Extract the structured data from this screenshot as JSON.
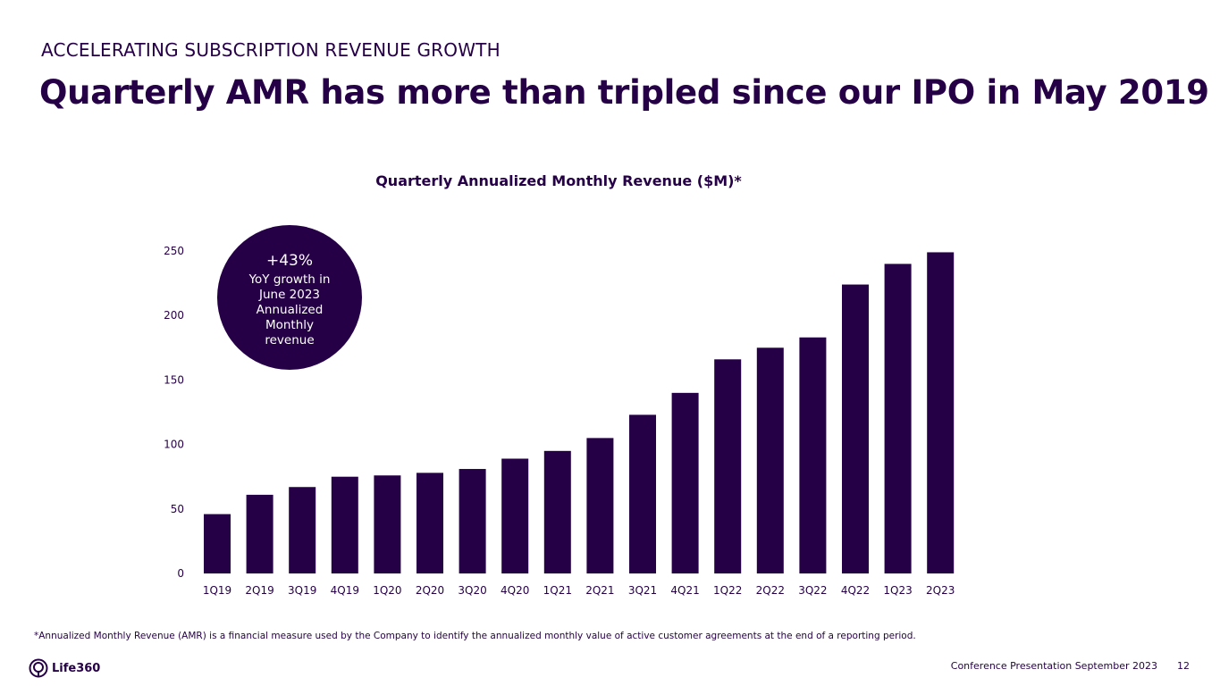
{
  "header": {
    "eyebrow": "ACCELERATING SUBSCRIPTION REVENUE GROWTH",
    "headline": "Quarterly AMR has more than tripled since our IPO in May 2019"
  },
  "callout": {
    "value": "+43%",
    "text": "YoY growth in June 2023 Annualized Monthly revenue"
  },
  "footer": {
    "note": "*Annualized Monthly Revenue (AMR) is a financial measure used by the Company to identify the annualized monthly value of active customer agreements at the end of a reporting period.",
    "logo": "Life360",
    "presentation": "Conference Presentation September 2023",
    "page": "12"
  },
  "colors": {
    "bar": "#260046",
    "text": "#260046"
  },
  "chart_data": {
    "type": "bar",
    "title": "Quarterly Annualized Monthly Revenue ($M)*",
    "categories": [
      "1Q19",
      "2Q19",
      "3Q19",
      "4Q19",
      "1Q20",
      "2Q20",
      "3Q20",
      "4Q20",
      "1Q21",
      "2Q21",
      "3Q21",
      "4Q21",
      "1Q22",
      "2Q22",
      "3Q22",
      "4Q22",
      "1Q23",
      "2Q23"
    ],
    "values": [
      46,
      61,
      67,
      75,
      76,
      78,
      81,
      89,
      95,
      105,
      123,
      140,
      166,
      175,
      183,
      224,
      240,
      249
    ],
    "ylim": [
      0,
      250
    ],
    "yticks": [
      0,
      50,
      100,
      150,
      200,
      250
    ],
    "grid": false,
    "xlabel": "",
    "ylabel": ""
  }
}
